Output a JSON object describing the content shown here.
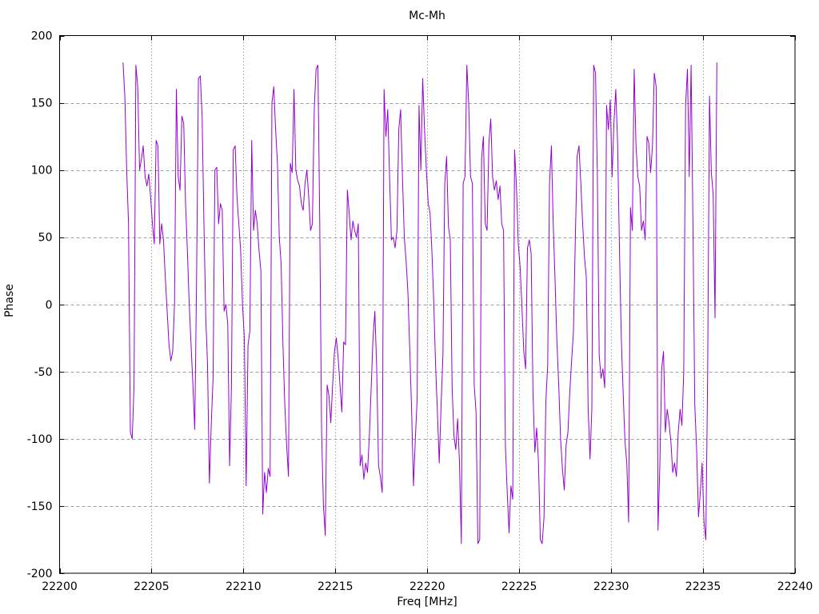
{
  "figure": {
    "background": "#ffffff",
    "border_color": "#000000",
    "grid_color": "#a0a0a0",
    "tick_label_color": "#000000"
  },
  "chart_data": {
    "type": "line",
    "title": "Mc-Mh",
    "xlabel": "Freq [MHz]",
    "ylabel": "Phase",
    "xlim": [
      22200,
      22240
    ],
    "ylim": [
      -200,
      200
    ],
    "x_ticks": [
      22200,
      22205,
      22210,
      22215,
      22220,
      22225,
      22230,
      22235,
      22240
    ],
    "y_ticks": [
      -200,
      -150,
      -100,
      -50,
      0,
      50,
      100,
      150,
      200
    ],
    "grid": true,
    "legend_position": "none",
    "series": [
      {
        "name": "phase",
        "color": "#9400d3",
        "x_start": 22203.45,
        "x_step": 0.1,
        "y": [
          180,
          155,
          100,
          60,
          -95,
          -100,
          -60,
          178,
          162,
          100,
          108,
          118,
          95,
          88,
          97,
          80,
          60,
          45,
          122,
          118,
          45,
          60,
          48,
          20,
          -5,
          -30,
          -42,
          -35,
          0,
          160,
          95,
          85,
          140,
          135,
          75,
          40,
          0,
          -30,
          -60,
          -93,
          20,
          168,
          170,
          140,
          60,
          -10,
          -45,
          -133,
          -90,
          -55,
          100,
          102,
          60,
          75,
          70,
          -5,
          0,
          -15,
          -120,
          -60,
          115,
          118,
          80,
          60,
          40,
          0,
          -25,
          -135,
          -30,
          -20,
          122,
          55,
          70,
          60,
          40,
          25,
          -156,
          -125,
          -140,
          -122,
          -128,
          150,
          162,
          130,
          105,
          50,
          30,
          -30,
          -75,
          -105,
          -128,
          105,
          98,
          160,
          100,
          92,
          88,
          75,
          70,
          90,
          100,
          80,
          55,
          60,
          145,
          175,
          178,
          60,
          -95,
          -150,
          -172,
          -60,
          -68,
          -88,
          -60,
          -35,
          -25,
          -40,
          -60,
          -80,
          -28,
          -30,
          85,
          68,
          48,
          62,
          55,
          50,
          60,
          -120,
          -112,
          -130,
          -118,
          -125,
          -98,
          -62,
          -25,
          -5,
          -48,
          -120,
          -128,
          -140,
          160,
          125,
          145,
          95,
          48,
          50,
          42,
          55,
          130,
          145,
          95,
          50,
          32,
          8,
          -35,
          -80,
          -135,
          -100,
          -70,
          148,
          100,
          168,
          130,
          100,
          75,
          68,
          40,
          2,
          -45,
          -80,
          -118,
          -75,
          -38,
          90,
          110,
          58,
          48,
          -62,
          -98,
          -108,
          -85,
          -118,
          -178,
          90,
          95,
          178,
          150,
          95,
          90,
          -60,
          -80,
          -178,
          -175,
          108,
          125,
          60,
          55,
          120,
          138,
          95,
          85,
          92,
          78,
          88,
          60,
          55,
          -105,
          -140,
          -170,
          -135,
          -145,
          115,
          88,
          45,
          28,
          -2,
          -35,
          -48,
          42,
          48,
          38,
          -65,
          -110,
          -92,
          -118,
          -175,
          -178,
          -158,
          -72,
          -45,
          90,
          118,
          60,
          18,
          -28,
          -60,
          -100,
          -122,
          -138,
          -105,
          -95,
          -65,
          -42,
          -20,
          48,
          110,
          118,
          90,
          60,
          35,
          20,
          -78,
          -115,
          -78,
          178,
          172,
          95,
          -38,
          -55,
          -48,
          -62,
          148,
          130,
          152,
          95,
          135,
          160,
          120,
          42,
          -25,
          -65,
          -102,
          -118,
          -162,
          72,
          55,
          175,
          118,
          95,
          88,
          55,
          62,
          48,
          125,
          120,
          98,
          118,
          172,
          162,
          -168,
          -120,
          -48,
          -35,
          -95,
          -78,
          -88,
          -102,
          -125,
          -118,
          -128,
          -95,
          -78,
          -90,
          -50,
          148,
          175,
          95,
          178,
          60,
          -75,
          -108,
          -158,
          -140,
          -118,
          -162,
          -175,
          -50,
          155,
          98,
          82,
          -10,
          180
        ]
      }
    ]
  }
}
